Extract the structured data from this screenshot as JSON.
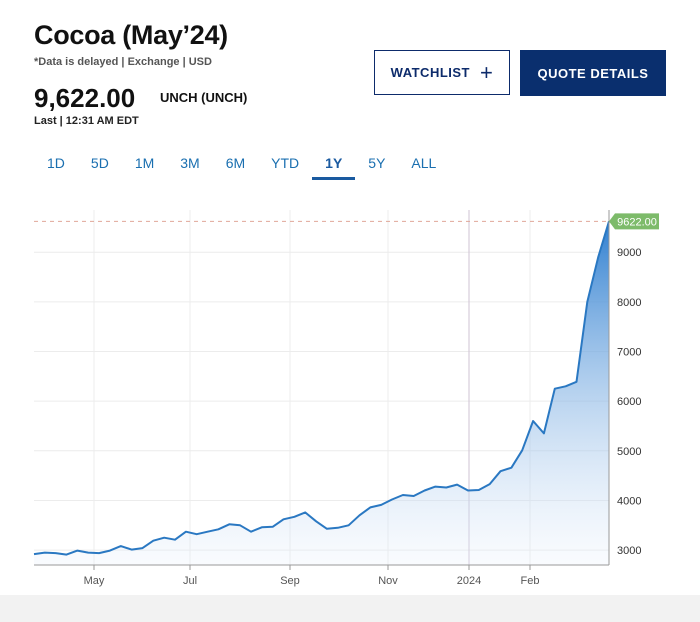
{
  "header": {
    "title": "Cocoa (May’24)",
    "subtitle": "*Data is delayed | Exchange | USD",
    "price": "9,622.00",
    "change": "UNCH (UNCH)",
    "last": "Last | 12:31 AM EDT"
  },
  "buttons": {
    "watchlist": "WATCHLIST",
    "quote_details": "QUOTE DETAILS"
  },
  "tabs": [
    {
      "label": "1D",
      "active": false
    },
    {
      "label": "5D",
      "active": false
    },
    {
      "label": "1M",
      "active": false
    },
    {
      "label": "3M",
      "active": false
    },
    {
      "label": "6M",
      "active": false
    },
    {
      "label": "YTD",
      "active": false
    },
    {
      "label": "1Y",
      "active": true
    },
    {
      "label": "5Y",
      "active": false
    },
    {
      "label": "ALL",
      "active": false
    }
  ],
  "colors": {
    "line": "#2a78c2",
    "area_top": "#2f7fd0",
    "area_bottom": "#e8f0fb",
    "price_label_bg": "#7dbb6a",
    "ref_line": "#e0a899",
    "button_dark": "#0a2f6e"
  },
  "chart_data": {
    "type": "area",
    "title": "",
    "xlabel": "",
    "ylabel": "",
    "x_tick_labels": [
      "May",
      "Jul",
      "Sep",
      "Nov",
      "2024",
      "Feb"
    ],
    "y_ticks": [
      3000,
      4000,
      5000,
      6000,
      7000,
      8000,
      9000
    ],
    "ylim": [
      2700,
      9850
    ],
    "grid": true,
    "last_value_label": "9622.00",
    "last_value": 9622,
    "series": [
      {
        "values": [
          2920,
          2950,
          2940,
          2910,
          2990,
          2950,
          2940,
          2990,
          3080,
          3010,
          3040,
          3190,
          3250,
          3210,
          3370,
          3320,
          3370,
          3420,
          3520,
          3500,
          3370,
          3460,
          3470,
          3620,
          3670,
          3760,
          3580,
          3430,
          3450,
          3500,
          3700,
          3860,
          3910,
          4020,
          4110,
          4090,
          4200,
          4280,
          4260,
          4320,
          4200,
          4210,
          4330,
          4590,
          4660,
          5010,
          5600,
          5350,
          6250,
          6300,
          6390,
          8000,
          8900,
          9622
        ]
      }
    ]
  }
}
